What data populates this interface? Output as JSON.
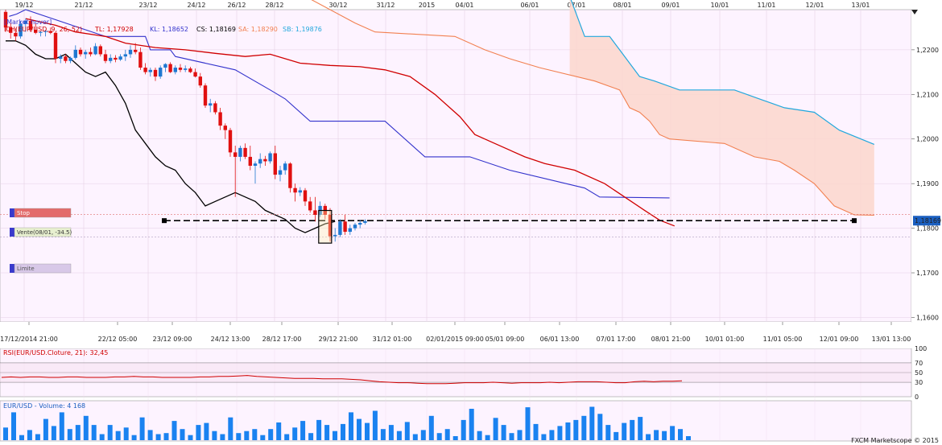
{
  "chart_data": [
    {
      "type": "candlestick",
      "title": "[Market hover]",
      "top_axis_labels": [
        "19/12",
        "21/12",
        "23/12",
        "24/12",
        "26/12",
        "28/12",
        "30/12",
        "31/12",
        "2015",
        "04/01",
        "06/01",
        "07/01",
        "08/01",
        "09/01",
        "10/01",
        "11/01",
        "12/01",
        "13/01"
      ],
      "bottom_axis_labels": [
        "17/12/2014 21:00",
        "22/12 05:00",
        "23/12 09:00",
        "24/12 13:00",
        "28/12 17:00",
        "29/12 21:00",
        "31/12 01:00",
        "02/01/2015 09:00",
        "05/01 09:00",
        "06/01 13:00",
        "07/01 17:00",
        "08/01 21:00",
        "10/01 01:00",
        "11/01 05:00",
        "12/01 09:00",
        "13/01 13:00"
      ],
      "y_ticks": [
        "1,2200",
        "1,2100",
        "1,2000",
        "1,1900",
        "1,1800",
        "1,1700",
        "1,1600"
      ],
      "ylim": [
        1.159,
        1.229
      ],
      "current_price": "1,18169",
      "indicator_label": "ICH(EUR/USD, 9, 26, 52)",
      "indicator_values": [
        {
          "text": "TL: 1,17928",
          "color": "#d00000"
        },
        {
          "text": "KL: 1,18652",
          "color": "#3333cc"
        },
        {
          "text": "CS: 1,18169",
          "color": "#000000"
        },
        {
          "text": "SA: 1,18290",
          "color": "#f28050"
        },
        {
          "text": "SB: 1,19876",
          "color": "#22a8dd"
        }
      ],
      "orders": [
        {
          "label": "Stop",
          "price": 1.1831
        },
        {
          "label": "Vente(08/01, -34.5)",
          "price": 1.1817
        },
        {
          "label": "Limite",
          "price": 1.178
        }
      ],
      "candles": [
        [
          1.2285,
          1.229,
          1.224,
          1.225
        ],
        [
          1.225,
          1.226,
          1.2225,
          1.2238
        ],
        [
          1.2238,
          1.2248,
          1.222,
          1.223
        ],
        [
          1.223,
          1.2265,
          1.2225,
          1.2258
        ],
        [
          1.2258,
          1.227,
          1.224,
          1.2265
        ],
        [
          1.2265,
          1.2275,
          1.224,
          1.2245
        ],
        [
          1.2245,
          1.226,
          1.2235,
          1.2238
        ],
        [
          1.2238,
          1.2242,
          1.223,
          1.224
        ],
        [
          1.224,
          1.2245,
          1.223,
          1.2242
        ],
        [
          1.2242,
          1.225,
          1.2235,
          1.2238
        ],
        [
          1.2238,
          1.224,
          1.217,
          1.218
        ],
        [
          1.218,
          1.219,
          1.217,
          1.2185
        ],
        [
          1.2185,
          1.219,
          1.217,
          1.2175
        ],
        [
          1.2175,
          1.2185,
          1.217,
          1.2182
        ],
        [
          1.2182,
          1.221,
          1.2178,
          1.22
        ],
        [
          1.22,
          1.2205,
          1.2185,
          1.219
        ],
        [
          1.219,
          1.22,
          1.218,
          1.2195
        ],
        [
          1.2195,
          1.2205,
          1.2185,
          1.219
        ],
        [
          1.219,
          1.2215,
          1.2188,
          1.2208
        ],
        [
          1.2208,
          1.2212,
          1.2185,
          1.219
        ],
        [
          1.219,
          1.22,
          1.217,
          1.2175
        ],
        [
          1.2175,
          1.219,
          1.217,
          1.2182
        ],
        [
          1.2182,
          1.2188,
          1.2172,
          1.2178
        ],
        [
          1.2178,
          1.219,
          1.2175,
          1.2185
        ],
        [
          1.2185,
          1.22,
          1.2175,
          1.219
        ],
        [
          1.219,
          1.221,
          1.2182,
          1.22
        ],
        [
          1.22,
          1.2215,
          1.219,
          1.2195
        ],
        [
          1.2195,
          1.2205,
          1.2155,
          1.216
        ],
        [
          1.216,
          1.217,
          1.2145,
          1.215
        ],
        [
          1.215,
          1.216,
          1.214,
          1.2155
        ],
        [
          1.2155,
          1.216,
          1.213,
          1.214
        ],
        [
          1.214,
          1.2165,
          1.2135,
          1.216
        ],
        [
          1.216,
          1.217,
          1.215,
          1.2168
        ],
        [
          1.2168,
          1.2172,
          1.2148,
          1.215
        ],
        [
          1.215,
          1.2165,
          1.2145,
          1.216
        ],
        [
          1.216,
          1.2168,
          1.215,
          1.2155
        ],
        [
          1.2155,
          1.2165,
          1.215,
          1.2158
        ],
        [
          1.2158,
          1.2162,
          1.2148,
          1.215
        ],
        [
          1.215,
          1.2158,
          1.2138,
          1.214
        ],
        [
          1.214,
          1.2148,
          1.2115,
          1.212
        ],
        [
          1.212,
          1.2125,
          1.207,
          1.2075
        ],
        [
          1.2075,
          1.209,
          1.206,
          1.208
        ],
        [
          1.208,
          1.2085,
          1.2055,
          1.206
        ],
        [
          1.206,
          1.207,
          1.202,
          1.203
        ],
        [
          1.203,
          1.2035,
          1.2,
          1.202
        ],
        [
          1.202,
          1.2025,
          1.196,
          1.197
        ],
        [
          1.197,
          1.1985,
          1.187,
          1.196
        ],
        [
          1.196,
          1.1985,
          1.195,
          1.198
        ],
        [
          1.198,
          1.199,
          1.1955,
          1.196
        ],
        [
          1.196,
          1.1985,
          1.193,
          1.194
        ],
        [
          1.194,
          1.195,
          1.19,
          1.1945
        ],
        [
          1.1945,
          1.1968,
          1.1935,
          1.1955
        ],
        [
          1.1955,
          1.1962,
          1.194,
          1.195
        ],
        [
          1.195,
          1.1972,
          1.1945,
          1.1968
        ],
        [
          1.1968,
          1.1985,
          1.191,
          1.192
        ],
        [
          1.192,
          1.194,
          1.1905,
          1.193
        ],
        [
          1.193,
          1.195,
          1.192,
          1.1945
        ],
        [
          1.1945,
          1.1948,
          1.188,
          1.189
        ],
        [
          1.189,
          1.19,
          1.186,
          1.188
        ],
        [
          1.188,
          1.1892,
          1.1872,
          1.1885
        ],
        [
          1.1885,
          1.189,
          1.185,
          1.186
        ],
        [
          1.186,
          1.187,
          1.1835,
          1.184
        ],
        [
          1.184,
          1.187,
          1.1815,
          1.183
        ],
        [
          1.183,
          1.186,
          1.1825,
          1.185
        ],
        [
          1.185,
          1.1855,
          1.182,
          1.183
        ],
        [
          1.183,
          1.1845,
          1.177,
          1.1782
        ],
        [
          1.1782,
          1.18,
          1.177,
          1.1785
        ],
        [
          1.1785,
          1.182,
          1.178,
          1.1815
        ],
        [
          1.1815,
          1.183,
          1.1785,
          1.1792
        ],
        [
          1.1792,
          1.1808,
          1.1785,
          1.18
        ],
        [
          1.18,
          1.1812,
          1.1795,
          1.1808
        ],
        [
          1.1808,
          1.1818,
          1.18,
          1.1812
        ],
        [
          1.1812,
          1.182,
          1.1808,
          1.1816
        ]
      ],
      "kijun": [
        [
          0.7,
          1.2275
        ],
        [
          2.2,
          1.228
        ],
        [
          4,
          1.229
        ],
        [
          20,
          1.223
        ],
        [
          28,
          1.223
        ],
        [
          29,
          1.22
        ],
        [
          33,
          1.22
        ],
        [
          34,
          1.2185
        ],
        [
          46,
          1.2155
        ],
        [
          53,
          1.211
        ],
        [
          56,
          1.209
        ],
        [
          61,
          1.204
        ],
        [
          76,
          1.204
        ],
        [
          84,
          1.196
        ],
        [
          93,
          1.196
        ],
        [
          101,
          1.193
        ],
        [
          116,
          1.189
        ],
        [
          119,
          1.187
        ],
        [
          133,
          1.1868
        ]
      ],
      "tenkan": [
        [
          4,
          1.227
        ],
        [
          10,
          1.2255
        ],
        [
          14,
          1.224
        ],
        [
          20,
          1.223
        ],
        [
          24,
          1.2215
        ],
        [
          30,
          1.2205
        ],
        [
          36,
          1.22
        ],
        [
          42,
          1.2192
        ],
        [
          48,
          1.2185
        ],
        [
          53,
          1.219
        ],
        [
          59,
          1.217
        ],
        [
          65,
          1.2165
        ],
        [
          71,
          1.2162
        ],
        [
          76,
          1.2155
        ],
        [
          81,
          1.214
        ],
        [
          86,
          1.21
        ],
        [
          91,
          1.205
        ],
        [
          94,
          1.201
        ],
        [
          98,
          1.199
        ],
        [
          104,
          1.196
        ],
        [
          108,
          1.1945
        ],
        [
          114,
          1.193
        ],
        [
          120,
          1.19
        ],
        [
          124,
          1.187
        ],
        [
          128,
          1.184
        ],
        [
          131,
          1.1818
        ],
        [
          134,
          1.1805
        ]
      ],
      "chikou": [
        [
          0,
          1.222
        ],
        [
          2,
          1.222
        ],
        [
          4,
          1.221
        ],
        [
          6,
          1.219
        ],
        [
          8,
          1.218
        ],
        [
          10,
          1.218
        ],
        [
          12,
          1.219
        ],
        [
          14,
          1.217
        ],
        [
          16,
          1.215
        ],
        [
          18,
          1.214
        ],
        [
          20,
          1.215
        ],
        [
          22,
          1.212
        ],
        [
          24,
          1.208
        ],
        [
          26,
          1.202
        ],
        [
          28,
          1.199
        ],
        [
          30,
          1.196
        ],
        [
          32,
          1.194
        ],
        [
          34,
          1.193
        ],
        [
          36,
          1.19
        ],
        [
          38,
          1.188
        ],
        [
          40,
          1.185
        ],
        [
          42,
          1.186
        ],
        [
          44,
          1.187
        ],
        [
          46,
          1.188
        ],
        [
          48,
          1.187
        ],
        [
          50,
          1.186
        ],
        [
          52,
          1.184
        ],
        [
          54,
          1.183
        ],
        [
          56,
          1.182
        ],
        [
          58,
          1.18
        ],
        [
          60,
          1.179
        ],
        [
          62,
          1.18
        ],
        [
          64,
          1.181
        ],
        [
          66,
          1.1815
        ]
      ],
      "senkou_a": [
        [
          60,
          1.232
        ],
        [
          70,
          1.226
        ],
        [
          74,
          1.224
        ],
        [
          90,
          1.223
        ],
        [
          96,
          1.22
        ],
        [
          101,
          1.218
        ],
        [
          107,
          1.216
        ],
        [
          118,
          1.213
        ],
        [
          123,
          1.211
        ],
        [
          125,
          1.207
        ],
        [
          127,
          1.206
        ],
        [
          129,
          1.204
        ],
        [
          131,
          1.201
        ],
        [
          133,
          1.2
        ],
        [
          144,
          1.199
        ],
        [
          150,
          1.196
        ],
        [
          155,
          1.195
        ],
        [
          158,
          1.193
        ],
        [
          162,
          1.19
        ],
        [
          166,
          1.185
        ],
        [
          170,
          1.183
        ],
        [
          174,
          1.1829
        ]
      ],
      "senkou_b": [
        [
          113,
          1.232
        ],
        [
          116,
          1.223
        ],
        [
          121,
          1.223
        ],
        [
          123,
          1.22
        ],
        [
          127,
          1.214
        ],
        [
          130,
          1.213
        ],
        [
          135,
          1.211
        ],
        [
          146,
          1.211
        ],
        [
          151,
          1.209
        ],
        [
          156,
          1.207
        ],
        [
          162,
          1.206
        ],
        [
          167,
          1.202
        ],
        [
          174,
          1.1988
        ]
      ]
    },
    {
      "type": "line",
      "title": "RSI(EUR/USD.Cloture, 21): 32,45",
      "y_ticks": [
        "100",
        "70",
        "50",
        "30",
        "0"
      ],
      "ylim": [
        0,
        100
      ],
      "levels": [
        70,
        50,
        30
      ],
      "series": [
        {
          "name": "RSI",
          "values": [
            40,
            41,
            40,
            41,
            41,
            40,
            40,
            41,
            41,
            40,
            40,
            40,
            41,
            41,
            42,
            41,
            41,
            40,
            40,
            40,
            40,
            41,
            41,
            42,
            42,
            43,
            44,
            42,
            41,
            40,
            39,
            38,
            38,
            38,
            37,
            37,
            37,
            36,
            35,
            33,
            31,
            30,
            29,
            29,
            28,
            27,
            27,
            27,
            28,
            29,
            29,
            29,
            30,
            29,
            28,
            29,
            29,
            29,
            30,
            29,
            30,
            31,
            31,
            31,
            30,
            29,
            29,
            31,
            32,
            31,
            32,
            32,
            33
          ]
        }
      ]
    },
    {
      "type": "bar",
      "title": "EUR/USD - Volume: 4 168",
      "series": [
        {
          "name": "Volume",
          "values": [
            25,
            55,
            10,
            20,
            12,
            42,
            28,
            55,
            22,
            30,
            48,
            30,
            12,
            30,
            18,
            25,
            10,
            45,
            20,
            12,
            14,
            38,
            22,
            10,
            30,
            34,
            18,
            12,
            45,
            14,
            18,
            22,
            10,
            22,
            35,
            12,
            25,
            38,
            14,
            40,
            30,
            18,
            32,
            55,
            42,
            34,
            58,
            22,
            30,
            18,
            36,
            12,
            20,
            48,
            14,
            22,
            8,
            40,
            62,
            18,
            10,
            44,
            30,
            14,
            20,
            65,
            32,
            12,
            20,
            28,
            35,
            40,
            48,
            66,
            52,
            30,
            16,
            34,
            40,
            46,
            12,
            20,
            18,
            28,
            22,
            8
          ]
        }
      ]
    }
  ],
  "credit": "FXCM Marketscope © 2015"
}
